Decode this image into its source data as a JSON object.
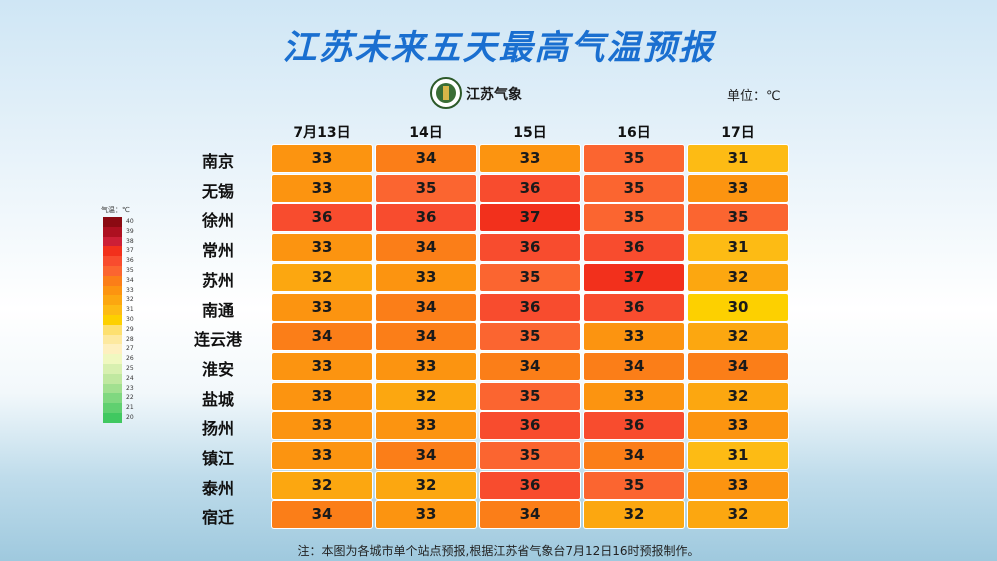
{
  "header": {
    "title": "江苏未来五天最高气温预报",
    "logo_text": "江苏气象",
    "unit": "单位：℃"
  },
  "table": {
    "columns": [
      "7月13日",
      "14日",
      "15日",
      "16日",
      "17日"
    ],
    "rows": [
      {
        "city": "南京",
        "values": [
          33,
          34,
          33,
          35,
          31
        ]
      },
      {
        "city": "无锡",
        "values": [
          33,
          35,
          36,
          35,
          33
        ]
      },
      {
        "city": "徐州",
        "values": [
          36,
          36,
          37,
          35,
          35
        ]
      },
      {
        "city": "常州",
        "values": [
          33,
          34,
          36,
          36,
          31
        ]
      },
      {
        "city": "苏州",
        "values": [
          32,
          33,
          35,
          37,
          32
        ]
      },
      {
        "city": "南通",
        "values": [
          33,
          34,
          36,
          36,
          30
        ]
      },
      {
        "city": "连云港",
        "values": [
          34,
          34,
          35,
          33,
          32
        ]
      },
      {
        "city": "淮安",
        "values": [
          33,
          33,
          34,
          34,
          34
        ]
      },
      {
        "city": "盐城",
        "values": [
          33,
          32,
          35,
          33,
          32
        ]
      },
      {
        "city": "扬州",
        "values": [
          33,
          33,
          36,
          36,
          33
        ]
      },
      {
        "city": "镇江",
        "values": [
          33,
          34,
          35,
          34,
          31
        ]
      },
      {
        "city": "泰州",
        "values": [
          32,
          32,
          36,
          35,
          33
        ]
      },
      {
        "city": "宿迁",
        "values": [
          34,
          33,
          34,
          32,
          32
        ]
      }
    ]
  },
  "legend": {
    "title": "气温：℃",
    "items": [
      {
        "value": 40,
        "color": "#8b0a12"
      },
      {
        "value": 39,
        "color": "#ad1020"
      },
      {
        "value": 38,
        "color": "#cc1f36"
      },
      {
        "value": 37,
        "color": "#f2301c"
      },
      {
        "value": 36,
        "color": "#f84c2e"
      },
      {
        "value": 35,
        "color": "#fb6530"
      },
      {
        "value": 34,
        "color": "#fb7e18"
      },
      {
        "value": 33,
        "color": "#fc9410"
      },
      {
        "value": 32,
        "color": "#fca710"
      },
      {
        "value": 31,
        "color": "#fdbb14"
      },
      {
        "value": 30,
        "color": "#fdd000"
      },
      {
        "value": 29,
        "color": "#fde070"
      },
      {
        "value": 28,
        "color": "#fde9a0"
      },
      {
        "value": 27,
        "color": "#fef0c0"
      },
      {
        "value": 26,
        "color": "#f0f8c0"
      },
      {
        "value": 25,
        "color": "#d8f0b0"
      },
      {
        "value": 24,
        "color": "#c0e8a0"
      },
      {
        "value": 23,
        "color": "#a2e090"
      },
      {
        "value": 22,
        "color": "#80d880"
      },
      {
        "value": 21,
        "color": "#60d070"
      },
      {
        "value": 20,
        "color": "#40c860"
      }
    ]
  },
  "note": "注：本图为各城市单个站点预报,根据江苏省气象台7月12日16时预报制作。"
}
